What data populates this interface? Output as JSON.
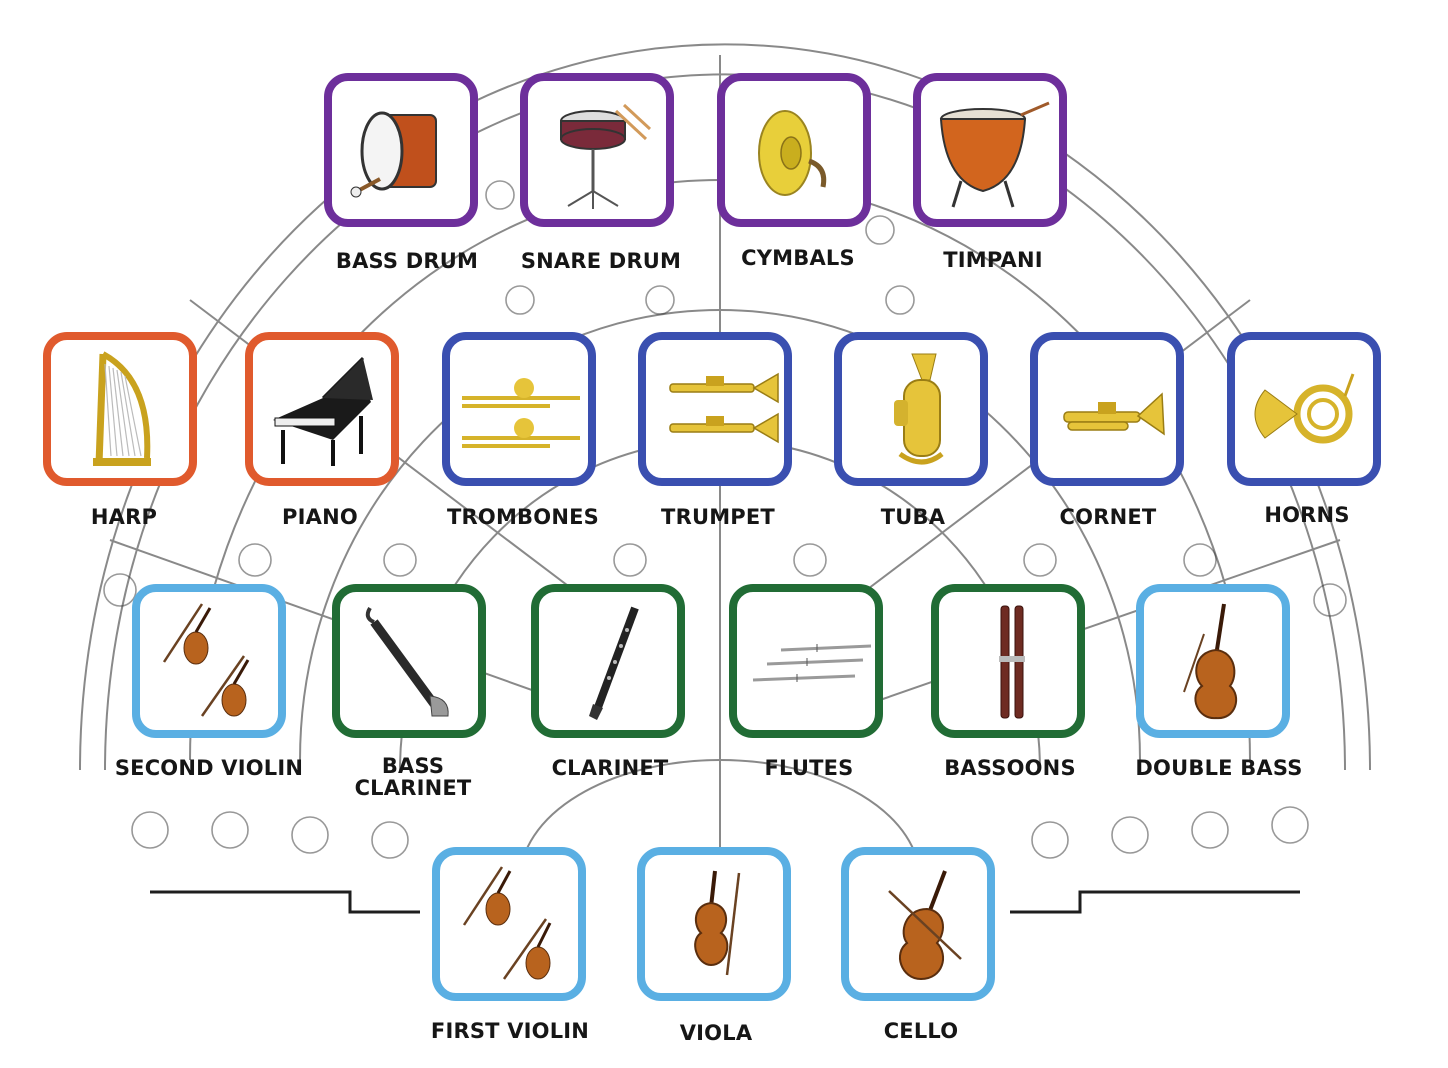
{
  "colors": {
    "percussion": "#6d2f9b",
    "keyboard_harp": "#e05a2d",
    "brass": "#3a4fb0",
    "strings": "#5aafe3",
    "woodwinds": "#216c35",
    "stage_lines": "#2a2a2a"
  },
  "instruments": [
    {
      "id": "bass-drum",
      "label": "BASS DRUM",
      "family": "percussion",
      "icon": "bass-drum-icon"
    },
    {
      "id": "snare-drum",
      "label": "SNARE DRUM",
      "family": "percussion",
      "icon": "snare-drum-icon"
    },
    {
      "id": "cymbals",
      "label": "CYMBALS",
      "family": "percussion",
      "icon": "cymbals-icon"
    },
    {
      "id": "timpani",
      "label": "TIMPANI",
      "family": "percussion",
      "icon": "timpani-icon"
    },
    {
      "id": "harp",
      "label": "HARP",
      "family": "keyboard_harp",
      "icon": "harp-icon"
    },
    {
      "id": "piano",
      "label": "PIANO",
      "family": "keyboard_harp",
      "icon": "piano-icon"
    },
    {
      "id": "trombones",
      "label": "TROMBONES",
      "family": "brass",
      "icon": "trombone-icon"
    },
    {
      "id": "trumpet",
      "label": "TRUMPET",
      "family": "brass",
      "icon": "trumpet-icon"
    },
    {
      "id": "tuba",
      "label": "TUBA",
      "family": "brass",
      "icon": "tuba-icon"
    },
    {
      "id": "cornet",
      "label": "CORNET",
      "family": "brass",
      "icon": "cornet-icon"
    },
    {
      "id": "horns",
      "label": "HORNS",
      "family": "brass",
      "icon": "french-horn-icon"
    },
    {
      "id": "second-violin",
      "label": "SECOND VIOLIN",
      "family": "strings",
      "icon": "violin-pair-icon"
    },
    {
      "id": "bass-clarinet",
      "label": "BASS CLARINET",
      "label_lines": [
        "BASS",
        "CLARINET"
      ],
      "family": "woodwinds",
      "icon": "bass-clarinet-icon"
    },
    {
      "id": "clarinet",
      "label": "CLARINET",
      "family": "woodwinds",
      "icon": "clarinet-icon"
    },
    {
      "id": "flutes",
      "label": "FLUTES",
      "family": "woodwinds",
      "icon": "flutes-icon"
    },
    {
      "id": "bassoons",
      "label": "BASSOONS",
      "family": "woodwinds",
      "icon": "bassoon-icon"
    },
    {
      "id": "double-bass",
      "label": "DOUBLE BASS",
      "family": "strings",
      "icon": "double-bass-icon"
    },
    {
      "id": "first-violin",
      "label": "FIRST VIOLIN",
      "family": "strings",
      "icon": "violin-pair-icon"
    },
    {
      "id": "viola",
      "label": "VIOLA",
      "family": "strings",
      "icon": "viola-icon"
    },
    {
      "id": "cello",
      "label": "CELLO",
      "family": "strings",
      "icon": "cello-icon"
    }
  ]
}
